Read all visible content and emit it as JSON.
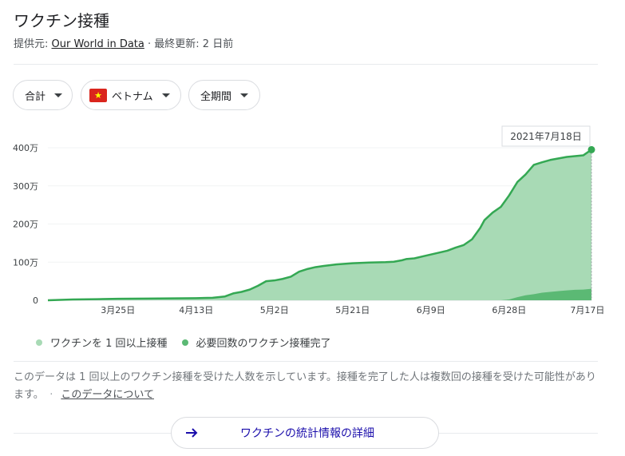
{
  "header": {
    "title": "ワクチン接種",
    "source_prefix": "提供元: ",
    "source_link": "Our World in Data",
    "updated": " · 最終更新: 2 日前"
  },
  "filters": {
    "metric": "合計",
    "country": "ベトナム",
    "period": "全期間"
  },
  "tooltip": "2021年7月18日",
  "legend": {
    "first_dose": "ワクチンを 1 回以上接種",
    "fully": "必要回数のワクチン接種完了"
  },
  "note": {
    "text": "このデータは 1 回以上のワクチン接種を受けた人数を示しています。接種を完了した人は複数回の接種を受けた可能性があります。",
    "sep": "·",
    "link": "このデータについて"
  },
  "more_button": "ワクチンの統計情報の詳細",
  "colors": {
    "line": "#34a853",
    "fill_first": "#a8dab5",
    "fill_full": "#5bb974",
    "grid": "#f1f3f4"
  },
  "chart_data": {
    "type": "area",
    "ylim": [
      0,
      4000000
    ],
    "y_ticks": [
      0,
      1000000,
      2000000,
      3000000,
      4000000
    ],
    "y_tick_labels": [
      "0",
      "100万",
      "200万",
      "300万",
      "400万"
    ],
    "x_tick_labels": [
      "3月25日",
      "4月13日",
      "5月2日",
      "5月21日",
      "6月9日",
      "6月28日",
      "7月17日"
    ],
    "x": [
      "2021-03-08",
      "2021-03-14",
      "2021-03-20",
      "2021-03-25",
      "2021-04-01",
      "2021-04-07",
      "2021-04-13",
      "2021-04-17",
      "2021-04-20",
      "2021-04-22",
      "2021-04-24",
      "2021-04-26",
      "2021-04-28",
      "2021-04-30",
      "2021-05-02",
      "2021-05-04",
      "2021-05-06",
      "2021-05-08",
      "2021-05-10",
      "2021-05-12",
      "2021-05-14",
      "2021-05-17",
      "2021-05-21",
      "2021-05-25",
      "2021-05-29",
      "2021-05-31",
      "2021-06-02",
      "2021-06-03",
      "2021-06-05",
      "2021-06-07",
      "2021-06-09",
      "2021-06-11",
      "2021-06-13",
      "2021-06-15",
      "2021-06-17",
      "2021-06-19",
      "2021-06-21",
      "2021-06-22",
      "2021-06-24",
      "2021-06-26",
      "2021-06-28",
      "2021-06-30",
      "2021-07-02",
      "2021-07-04",
      "2021-07-06",
      "2021-07-08",
      "2021-07-10",
      "2021-07-12",
      "2021-07-14",
      "2021-07-16",
      "2021-07-18"
    ],
    "series": [
      {
        "name": "ワクチンを 1 回以上接種",
        "values": [
          0,
          20000,
          30000,
          40000,
          45000,
          50000,
          55000,
          65000,
          100000,
          180000,
          220000,
          280000,
          380000,
          500000,
          520000,
          560000,
          620000,
          750000,
          820000,
          870000,
          900000,
          940000,
          970000,
          990000,
          1000000,
          1010000,
          1050000,
          1080000,
          1100000,
          1150000,
          1200000,
          1250000,
          1300000,
          1380000,
          1450000,
          1600000,
          1900000,
          2100000,
          2300000,
          2450000,
          2750000,
          3100000,
          3300000,
          3550000,
          3620000,
          3680000,
          3720000,
          3760000,
          3780000,
          3800000,
          3950000
        ]
      },
      {
        "name": "必要回数のワクチン接種完了",
        "values": [
          0,
          0,
          0,
          0,
          0,
          0,
          0,
          0,
          0,
          0,
          0,
          0,
          0,
          0,
          0,
          0,
          0,
          0,
          0,
          0,
          0,
          0,
          0,
          0,
          0,
          0,
          0,
          0,
          0,
          0,
          0,
          0,
          0,
          0,
          0,
          0,
          0,
          0,
          0,
          0,
          20000,
          80000,
          130000,
          160000,
          200000,
          220000,
          240000,
          260000,
          275000,
          280000,
          300000
        ]
      }
    ]
  }
}
